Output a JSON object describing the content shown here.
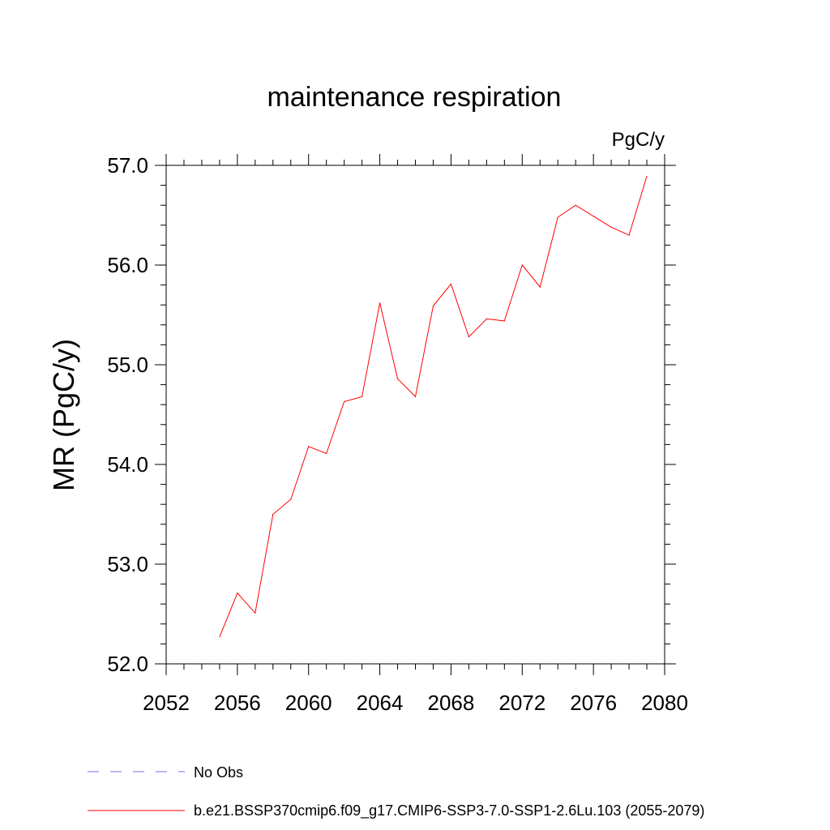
{
  "chart_data": {
    "type": "line",
    "title": "maintenance respiration",
    "units": "PgC/y",
    "xlabel": "",
    "ylabel": "MR  (PgC/y)",
    "xlim": [
      2052,
      2080
    ],
    "ylim": [
      52.0,
      57.0
    ],
    "x_ticks": [
      "2052",
      "2056",
      "2060",
      "2064",
      "2068",
      "2072",
      "2076",
      "2080"
    ],
    "y_ticks": [
      "52.0",
      "53.0",
      "54.0",
      "55.0",
      "56.0",
      "57.0"
    ],
    "series": [
      {
        "name": "b.e21.BSSP370cmip6.f09_g17.CMIP6-SSP3-7.0-SSP1-2.6Lu.103 (2055-2079)",
        "color": "#ff0000",
        "x": [
          2055,
          2056,
          2057,
          2058,
          2059,
          2060,
          2061,
          2062,
          2063,
          2064,
          2065,
          2066,
          2067,
          2068,
          2069,
          2070,
          2071,
          2072,
          2073,
          2074,
          2075,
          2076,
          2077,
          2078,
          2079
        ],
        "values": [
          52.27,
          52.71,
          52.51,
          53.5,
          53.65,
          54.18,
          54.11,
          54.63,
          54.68,
          55.62,
          54.86,
          54.68,
          55.59,
          55.81,
          55.28,
          55.46,
          55.44,
          56.0,
          55.78,
          56.48,
          56.6,
          56.49,
          56.38,
          56.3,
          56.89
        ]
      }
    ],
    "legend": [
      {
        "label": "No Obs",
        "style": "dashed",
        "color": "#7b68ee"
      },
      {
        "label": "b.e21.BSSP370cmip6.f09_g17.CMIP6-SSP3-7.0-SSP1-2.6Lu.103 (2055-2079)",
        "style": "solid",
        "color": "#ff0000"
      }
    ]
  }
}
